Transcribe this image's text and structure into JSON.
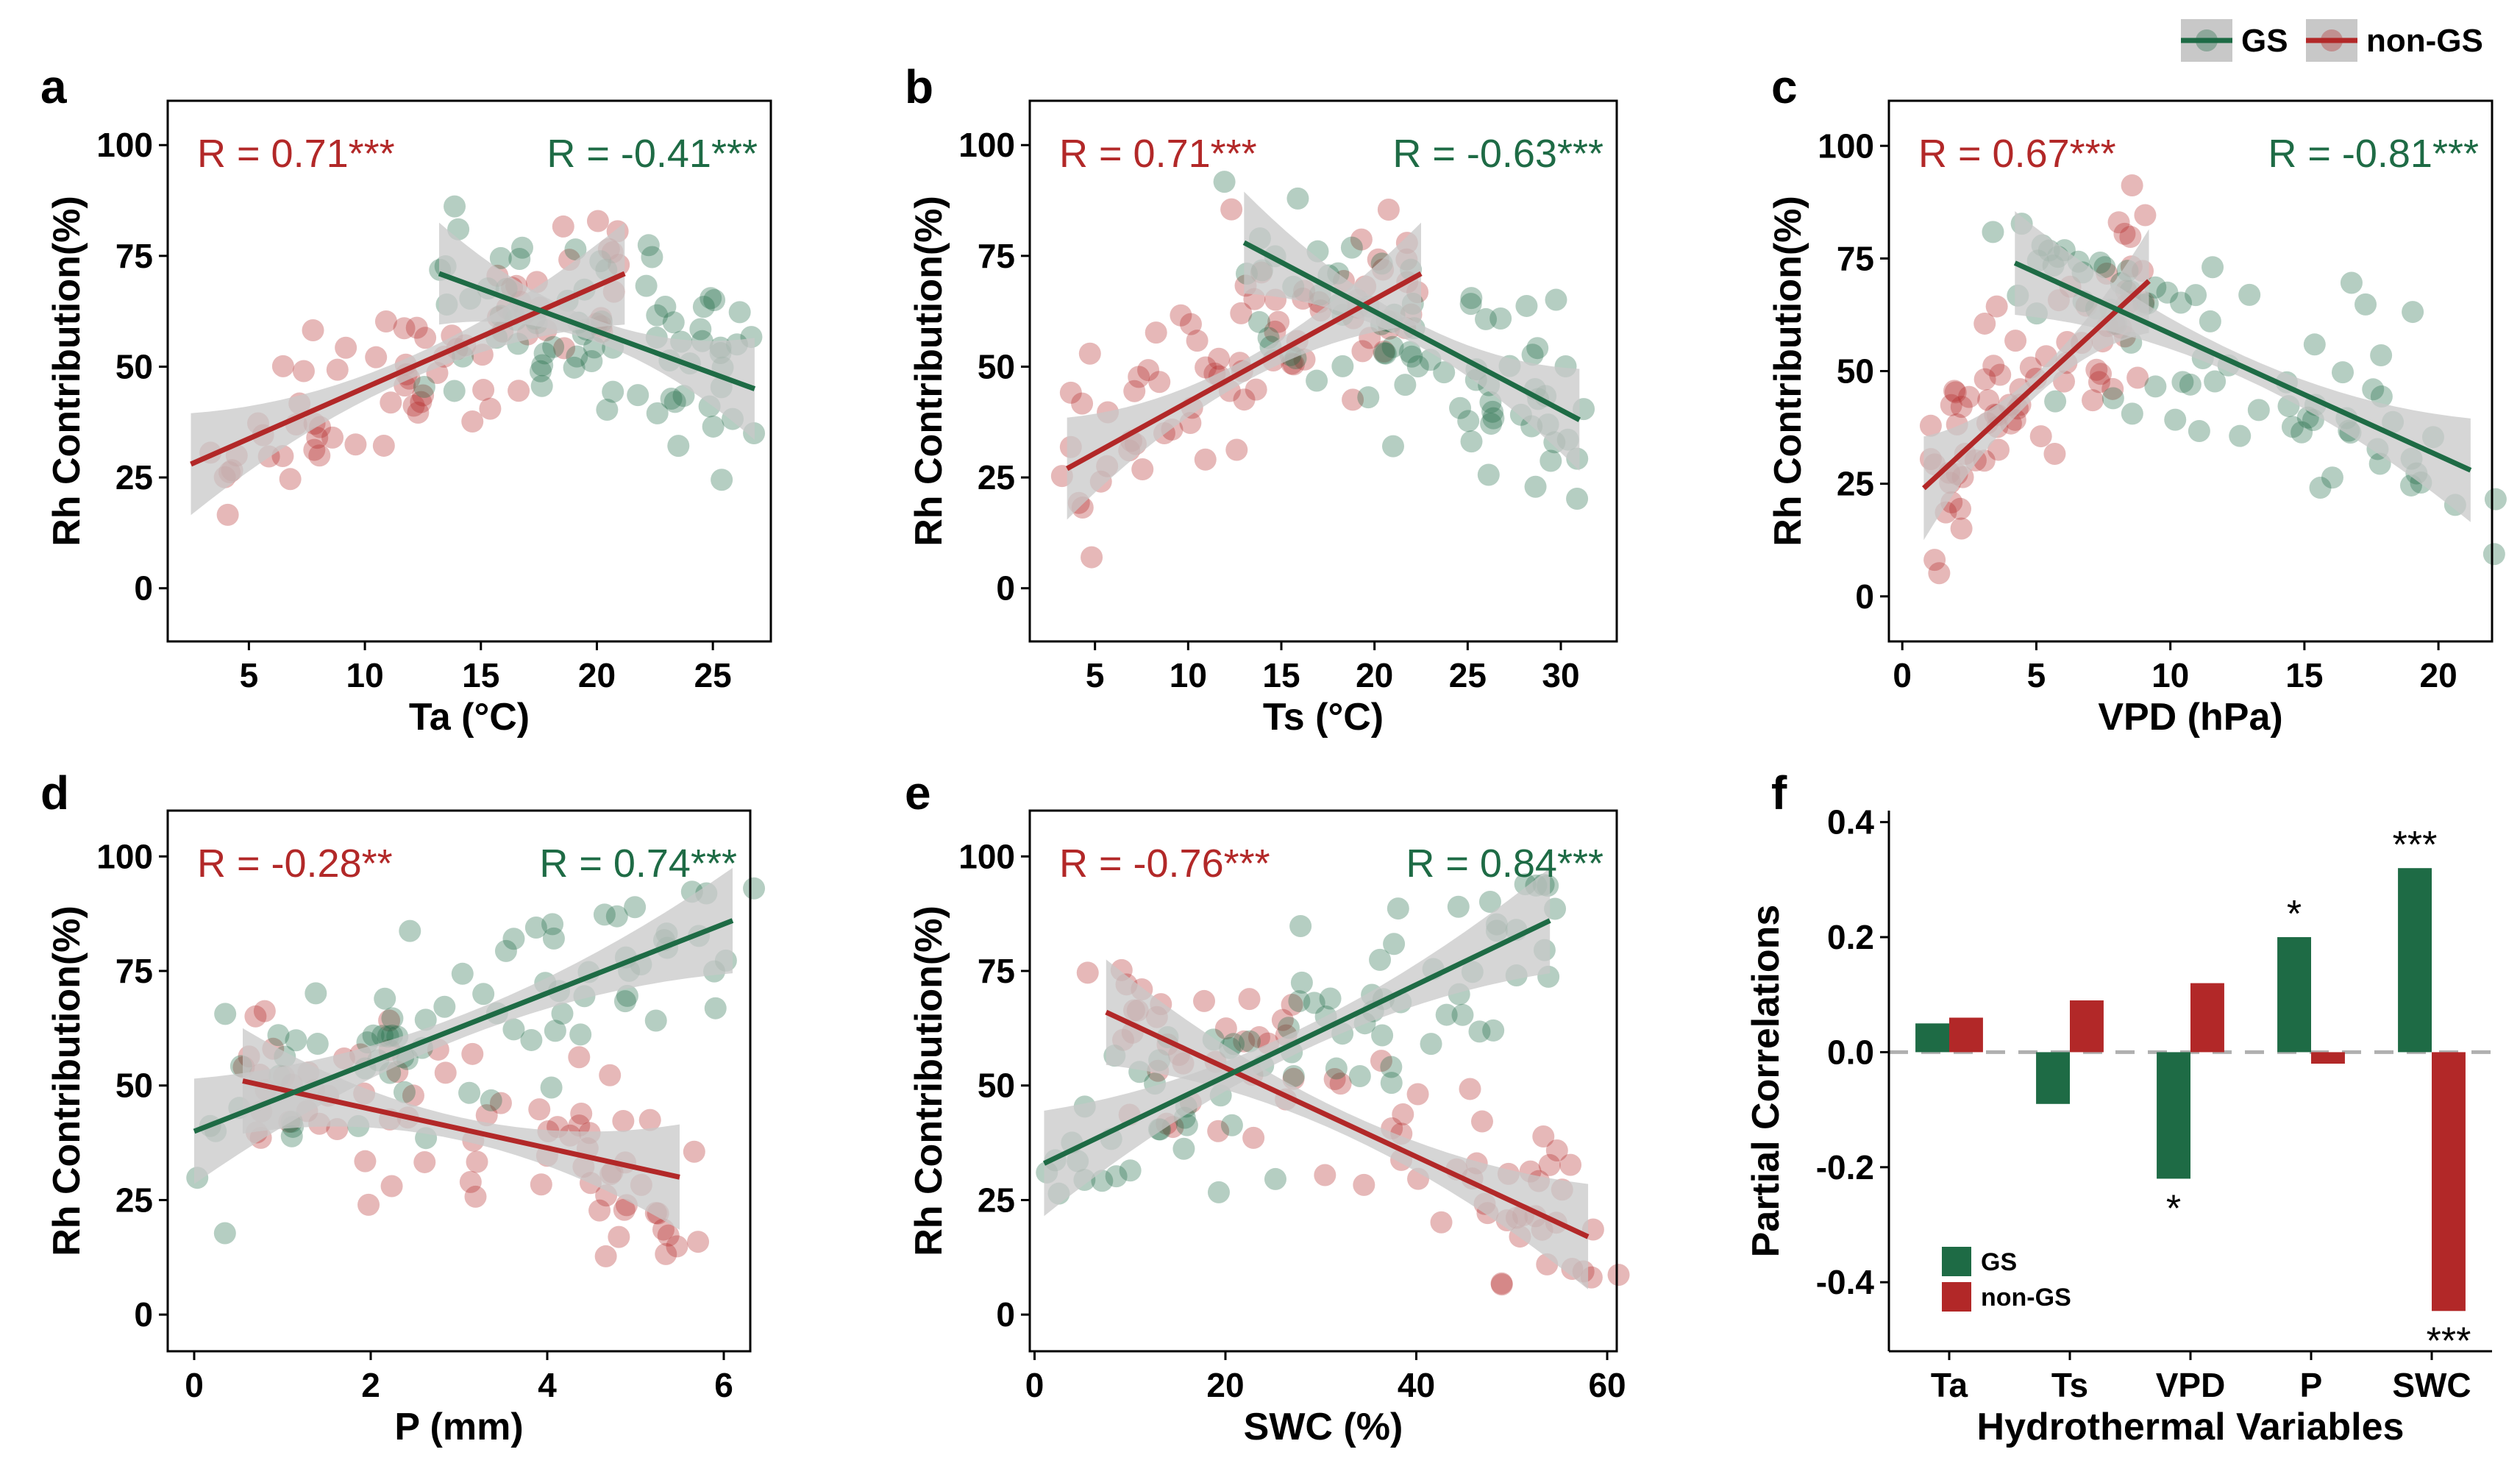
{
  "colors": {
    "gs": "#1e6b45",
    "nongs": "#b22828",
    "band": "#c8c8c8",
    "axis": "#000000"
  },
  "legend": {
    "top": [
      {
        "label": "GS",
        "key": "gs"
      },
      {
        "label": "non-GS",
        "key": "nongs"
      }
    ],
    "f": [
      {
        "label": "GS",
        "key": "gs"
      },
      {
        "label": "non-GS",
        "key": "nongs"
      }
    ]
  },
  "chart_data": [
    {
      "id": "a",
      "panel_label": "a",
      "type": "scatter",
      "xlabel": "Ta (°C)",
      "ylabel": "Rh Contribution(%)",
      "xlim": [
        1.5,
        27.5
      ],
      "ylim": [
        -12,
        110
      ],
      "xticks": [
        5,
        10,
        15,
        20,
        25
      ],
      "yticks": [
        0,
        25,
        50,
        75,
        100
      ],
      "r_text": {
        "nongs": "R = 0.71***",
        "gs": "R = -0.41***"
      },
      "fit": {
        "nongs": [
          [
            2.5,
            28
          ],
          [
            21.2,
            71
          ]
        ],
        "gs": [
          [
            13.2,
            71
          ],
          [
            26.8,
            45
          ]
        ]
      }
    },
    {
      "id": "b",
      "panel_label": "b",
      "type": "scatter",
      "xlabel": "Ts (°C)",
      "ylabel": "Rh Contribution(%)",
      "xlim": [
        1.5,
        33
      ],
      "ylim": [
        -12,
        110
      ],
      "xticks": [
        5,
        10,
        15,
        20,
        25,
        30
      ],
      "yticks": [
        0,
        25,
        50,
        75,
        100
      ],
      "r_text": {
        "nongs": "R = 0.71***",
        "gs": "R = -0.63***"
      },
      "fit": {
        "nongs": [
          [
            3.5,
            27
          ],
          [
            22.5,
            71
          ]
        ],
        "gs": [
          [
            13,
            78
          ],
          [
            31,
            38
          ]
        ]
      }
    },
    {
      "id": "c",
      "panel_label": "c",
      "type": "scatter",
      "xlabel": "VPD (hPa)",
      "ylabel": "Rh Contribution(%)",
      "xlim": [
        -0.5,
        22
      ],
      "ylim": [
        -10,
        110
      ],
      "xticks": [
        0,
        5,
        10,
        15,
        20
      ],
      "yticks": [
        0,
        25,
        50,
        75,
        100
      ],
      "r_text": {
        "nongs": "R = 0.67***",
        "gs": "R = -0.81***"
      },
      "fit": {
        "nongs": [
          [
            0.8,
            24
          ],
          [
            9.2,
            70
          ]
        ],
        "gs": [
          [
            4.2,
            74
          ],
          [
            21.2,
            28
          ]
        ]
      }
    },
    {
      "id": "d",
      "panel_label": "d",
      "type": "scatter",
      "xlabel": "P (mm)",
      "ylabel": "Rh Contribution(%)",
      "xlim": [
        -0.3,
        6.3
      ],
      "ylim": [
        -8,
        110
      ],
      "xticks": [
        0,
        2,
        4,
        6
      ],
      "yticks": [
        0,
        25,
        50,
        75,
        100
      ],
      "r_text": {
        "nongs": "R = -0.28**",
        "gs": "R = 0.74***"
      },
      "fit": {
        "nongs": [
          [
            0.55,
            51
          ],
          [
            5.5,
            30
          ]
        ],
        "gs": [
          [
            0,
            40
          ],
          [
            6.1,
            86
          ]
        ]
      }
    },
    {
      "id": "e",
      "panel_label": "e",
      "type": "scatter",
      "xlabel": "SWC (%)",
      "ylabel": "Rh Contribution(%)",
      "xlim": [
        -0.5,
        61
      ],
      "ylim": [
        -8,
        110
      ],
      "xticks": [
        0,
        20,
        40,
        60
      ],
      "yticks": [
        0,
        25,
        50,
        75,
        100
      ],
      "r_text": {
        "nongs": "R = -0.76***",
        "gs": "R = 0.84***"
      },
      "fit": {
        "nongs": [
          [
            7.5,
            66
          ],
          [
            58,
            17
          ]
        ],
        "gs": [
          [
            1,
            33
          ],
          [
            54,
            86
          ]
        ]
      }
    },
    {
      "id": "f",
      "panel_label": "f",
      "type": "bar",
      "xlabel": "Hydrothermal Variables",
      "ylabel": "Partial Correlations",
      "categories": [
        "Ta",
        "Ts",
        "VPD",
        "P",
        "SWC"
      ],
      "ylim": [
        -0.52,
        0.42
      ],
      "yticks": [
        "0.4",
        "0.2",
        "0.0",
        "-0.2",
        "-0.4"
      ],
      "series": [
        {
          "name": "GS",
          "key": "gs",
          "values": [
            0.05,
            -0.09,
            -0.22,
            0.2,
            0.32
          ],
          "labels": [
            "",
            "",
            "*",
            "*",
            "***"
          ]
        },
        {
          "name": "non-GS",
          "key": "nongs",
          "values": [
            0.06,
            0.09,
            0.12,
            -0.02,
            -0.45
          ],
          "labels": [
            "",
            "",
            "",
            "",
            "***"
          ]
        }
      ]
    }
  ]
}
